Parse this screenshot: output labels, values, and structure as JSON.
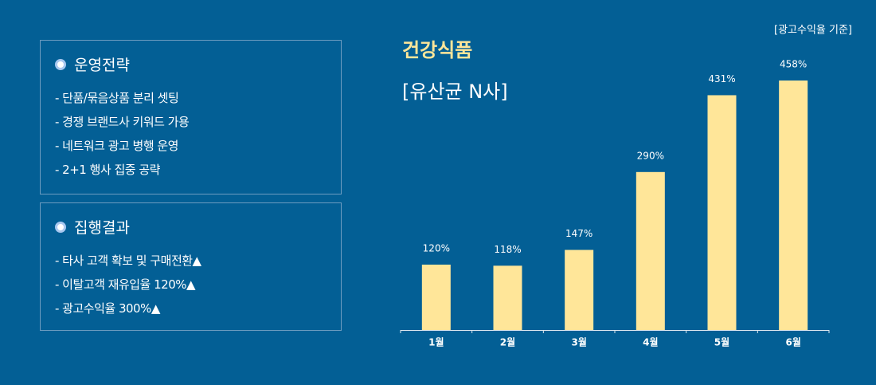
{
  "note": "[광고수익율 기준]",
  "panels": [
    {
      "heading": "운영전략",
      "items": [
        "- 단품/묶음상품 분리 셋팅",
        "- 경쟁 브랜드사 키워드 가용",
        "- 네트워크 광고 병행 운영",
        "- 2+1 행사 집중 공략"
      ]
    },
    {
      "heading": "집행결과",
      "items": [
        "- 타사 고객 확보 및 구매전환▲",
        "- 이탈고객 재유입율 120%▲",
        "- 광고수익율 300%▲"
      ]
    }
  ],
  "chart_data": {
    "type": "bar",
    "title": "건강식품",
    "subtitle": "[유산균 N사]",
    "categories": [
      "1월",
      "2월",
      "3월",
      "4월",
      "5월",
      "6월"
    ],
    "values": [
      120,
      118,
      147,
      290,
      431,
      458
    ],
    "value_labels": [
      "120%",
      "118%",
      "147%",
      "290%",
      "431%",
      "458%"
    ],
    "color": "#ffe699"
  }
}
